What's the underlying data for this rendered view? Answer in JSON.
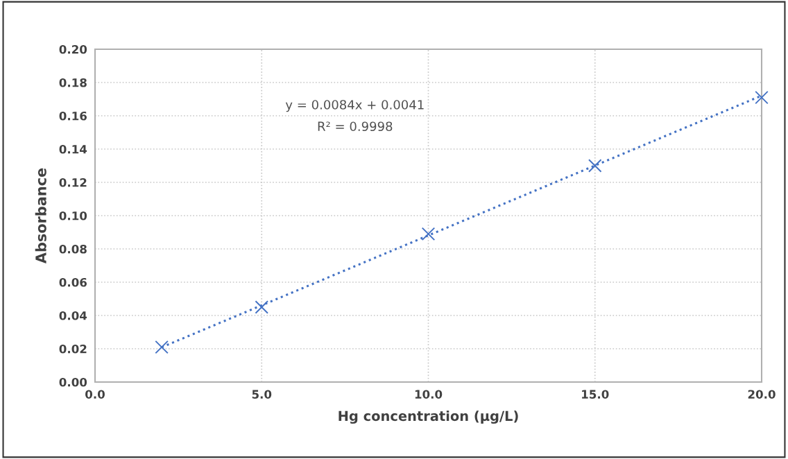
{
  "chart_data": {
    "type": "scatter",
    "xlabel": "Hg concentration (µg/L)",
    "ylabel": "Absorbance",
    "x": [
      2,
      5,
      10,
      15,
      20
    ],
    "series": [
      {
        "color": "#4472c4",
        "values": [
          0.021,
          0.045,
          0.089,
          0.13,
          0.171
        ],
        "marker": "cross"
      },
      {
        "type": "line",
        "color": "#4472c4",
        "x": [
          2,
          20
        ],
        "values": [
          0.0209,
          0.1721
        ],
        "marker": "none",
        "line_style": "dotted"
      }
    ],
    "annotations": [
      "y = 0.0084x + 0.0041",
      "R² = 0.9998"
    ],
    "xlim": [
      0,
      20
    ],
    "xticks": [
      {
        "value": 0,
        "label": "0.0"
      },
      {
        "value": 5,
        "label": "5.0"
      },
      {
        "value": 10,
        "label": "10.0"
      },
      {
        "value": 15,
        "label": "15.0"
      },
      {
        "value": 20,
        "label": "20.0"
      }
    ],
    "ylim": [
      0,
      0.2
    ],
    "yticks": [
      {
        "value": 0,
        "label": "0.00"
      },
      {
        "value": 0.02,
        "label": "0.02"
      },
      {
        "value": 0.04,
        "label": "0.04"
      },
      {
        "value": 0.06,
        "label": "0.06"
      },
      {
        "value": 0.08,
        "label": "0.08"
      },
      {
        "value": 0.1,
        "label": "0.10"
      },
      {
        "value": 0.12,
        "label": "0.12"
      },
      {
        "value": 0.14,
        "label": "0.14"
      },
      {
        "value": 0.16,
        "label": "0.16"
      },
      {
        "value": 0.18,
        "label": "0.18"
      },
      {
        "value": 0.2,
        "label": "0.20"
      }
    ],
    "grid": true
  }
}
